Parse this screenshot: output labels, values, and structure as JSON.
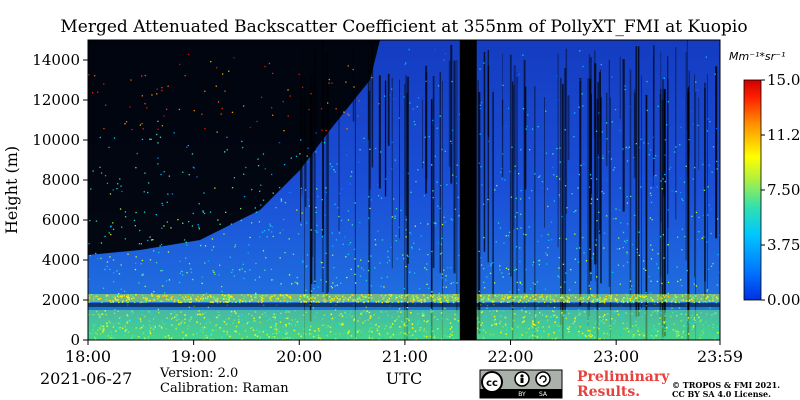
{
  "chart_data": {
    "type": "heatmap",
    "title": "Merged Attenuated Backscatter Coefficient at 355nm of PollyXT_FMI at Kuopio",
    "ylabel": "Height (m)",
    "xlabel": "UTC",
    "x_ticks": [
      "18:00",
      "19:00",
      "20:00",
      "21:00",
      "22:00",
      "23:00",
      "23:59"
    ],
    "x_tick_hours": [
      18,
      19,
      20,
      21,
      22,
      23,
      23.983
    ],
    "xlim_hours": [
      18,
      23.983
    ],
    "y_ticks": [
      0,
      2000,
      4000,
      6000,
      8000,
      10000,
      12000,
      14000
    ],
    "ylim": [
      0,
      15000
    ],
    "colorbar": {
      "unit": "Mm⁻¹*sr⁻¹",
      "ticks": [
        "0.00",
        "3.75",
        "7.50",
        "11.25",
        "15.00"
      ],
      "tick_values": [
        0,
        3.75,
        7.5,
        11.25,
        15
      ],
      "range": [
        0,
        15
      ],
      "colormap": "jet"
    },
    "data_gap_hours": [
      21.52,
      21.68
    ],
    "layers": [
      {
        "name": "boundary_layer",
        "base_m": 0,
        "top_m": 1500,
        "typical_value": 7.5
      },
      {
        "name": "aerosol_band",
        "base_m": 1900,
        "top_m": 2300,
        "typical_value": 8.5
      }
    ]
  },
  "footer": {
    "date": "2021-06-27",
    "version": "Version: 2.0",
    "calibration": "Calibration: Raman",
    "preliminary_line1": "Preliminary",
    "preliminary_line2": "Results.",
    "copyright_line1": "© TROPOS & FMI 2021.",
    "copyright_line2": "CC BY SA 4.0 License.",
    "license_badge": {
      "cc": "cc",
      "by": "BY",
      "sa": "SA"
    }
  },
  "colors": {
    "preliminary": "#e8403c",
    "background_signal": "#1a4fd8",
    "no_data": "#000000"
  }
}
